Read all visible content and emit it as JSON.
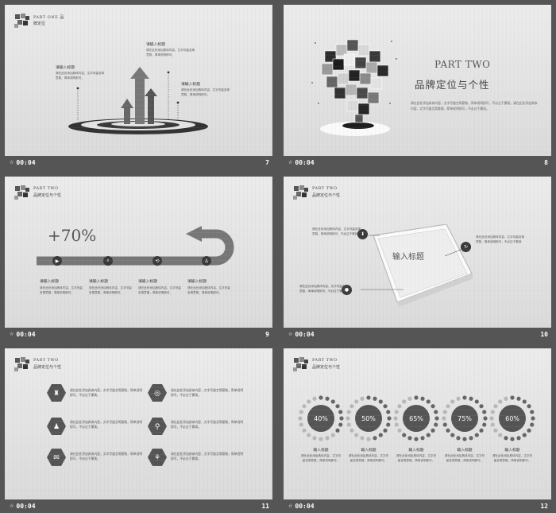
{
  "common": {
    "time": "00:04",
    "star": "☆",
    "placeholder_title": "请输入标题",
    "placeholder_text": "请在此处添加具体内容，文字尽量言简意赅，简单说明即可，不必过于繁琐"
  },
  "slides": [
    {
      "number": "7",
      "header1": "PART ONE 品",
      "header2": "牌定位",
      "labels": [
        {
          "title": "请输入标题",
          "text": "请在此处添加具体内容，文字尽量言简意赅，简单说明即可。"
        },
        {
          "title": "请输入标题",
          "text": "请在此处添加具体内容，文字尽量言简意赅，简单说明即可。"
        },
        {
          "title": "请输入标题",
          "text": "请在此处添加具体内容，文字尽量言简意赅，简单说明即可。"
        }
      ]
    },
    {
      "number": "8",
      "part": "PART TWO",
      "title": "品牌定位与个性",
      "body": "请在此处添加具体内容，文字尽量言简意赅，简单说明即可，不必过于繁琐，请在此处添加具体内容，文字尽量言简意赅，简单说明即可，不必过于繁琐。"
    },
    {
      "number": "9",
      "header1": "PART TWO",
      "header2": "品牌定位与个性",
      "percent": "+70%",
      "labels": [
        {
          "title": "请输入标题",
          "text": "请在此处添加具体内容，文字尽量言简意赅，简单说明即可。"
        },
        {
          "title": "请输入标题",
          "text": "请在此处添加具体内容，文字尽量言简意赅，简单说明即可。"
        },
        {
          "title": "请输入标题",
          "text": "请在此处添加具体内容，文字尽量言简意赅，简单说明即可。"
        },
        {
          "title": "请输入标题",
          "text": "请在此处添加具体内容，文字尽量言简意赅，简单说明即可。"
        }
      ]
    },
    {
      "number": "10",
      "header1": "PART TWO",
      "header2": "品牌定位与个性",
      "phone_title": "输入标题",
      "blocks": [
        {
          "text": "请在此处添加具体内容，文字尽量言简意赅，简单说明即可，不必过于繁琐"
        },
        {
          "text": "请在此处添加具体内容，文字尽量言简意赅，简单说明即可，不必过于繁琐"
        },
        {
          "text": "请在此处添加具体内容，文字尽量言简意赅，简单说明即可，不必过于繁琐"
        }
      ]
    },
    {
      "number": "11",
      "header1": "PART TWO",
      "header2": "品牌定位与个性",
      "items": [
        {
          "text": "请在此处添加具体内容，文字尽量言简意赅，简单说明即可，不必过于繁琐。"
        },
        {
          "text": "请在此处添加具体内容，文字尽量言简意赅，简单说明即可，不必过于繁琐。"
        },
        {
          "text": "请在此处添加具体内容，文字尽量言简意赅，简单说明即可，不必过于繁琐。"
        },
        {
          "text": "请在此处添加具体内容，文字尽量言简意赅，简单说明即可，不必过于繁琐。"
        },
        {
          "text": "请在此处添加具体内容，文字尽量言简意赅，简单说明即可，不必过于繁琐。"
        },
        {
          "text": "请在此处添加具体内容，文字尽量言简意赅，简单说明即可，不必过于繁琐。"
        }
      ]
    },
    {
      "number": "12",
      "header1": "PART TWO",
      "header2": "品牌定位与个性",
      "gauges": [
        {
          "value": "40%",
          "title": "输入标题",
          "text": "请在此处添加具体内容，文字尽量言简意赅，简单说明即可。"
        },
        {
          "value": "50%",
          "title": "输入标题",
          "text": "请在此处添加具体内容，文字尽量言简意赅，简单说明即可。"
        },
        {
          "value": "65%",
          "title": "输入标题",
          "text": "请在此处添加具体内容，文字尽量言简意赅，简单说明即可。"
        },
        {
          "value": "75%",
          "title": "输入标题",
          "text": "请在此处添加具体内容，文字尽量言简意赅，简单说明即可。"
        },
        {
          "value": "60%",
          "title": "输入标题",
          "text": "请在此处添加具体内容，文字尽量言简意赅，简单说明即可。"
        }
      ]
    }
  ],
  "colors": {
    "background": "#555555",
    "slide": "#e4e4e4",
    "dark": "#3a3a3a",
    "mid": "#777777"
  }
}
